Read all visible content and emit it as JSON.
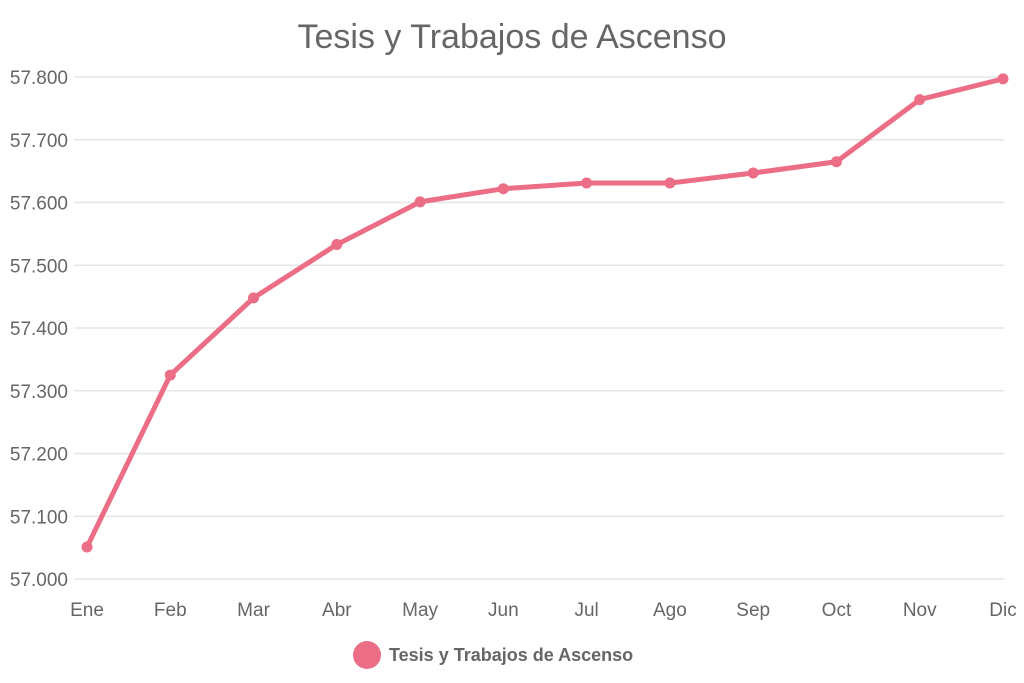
{
  "chart_data": {
    "type": "line",
    "title": "Tesis y Trabajos de Ascenso",
    "xlabel": "",
    "ylabel": "",
    "categories": [
      "Ene",
      "Feb",
      "Mar",
      "Abr",
      "May",
      "Jun",
      "Jul",
      "Ago",
      "Sep",
      "Oct",
      "Nov",
      "Dic"
    ],
    "series": [
      {
        "name": "Tesis y Trabajos de Ascenso",
        "color": "#ec6d86",
        "values": [
          57051,
          57325,
          57448,
          57533,
          57601,
          57622,
          57631,
          57631,
          57647,
          57665,
          57764,
          57797
        ]
      }
    ],
    "ylim": [
      57000,
      57800
    ],
    "y_ticks": [
      {
        "value": 57000,
        "label": "57.000"
      },
      {
        "value": 57100,
        "label": "57.100"
      },
      {
        "value": 57200,
        "label": "57.200"
      },
      {
        "value": 57300,
        "label": "57.300"
      },
      {
        "value": 57400,
        "label": "57.400"
      },
      {
        "value": 57500,
        "label": "57.500"
      },
      {
        "value": 57600,
        "label": "57.600"
      },
      {
        "value": 57700,
        "label": "57.700"
      },
      {
        "value": 57800,
        "label": "57.800"
      }
    ],
    "grid": true,
    "grid_color": "#e5e5e5",
    "legend_position": "bottom"
  }
}
